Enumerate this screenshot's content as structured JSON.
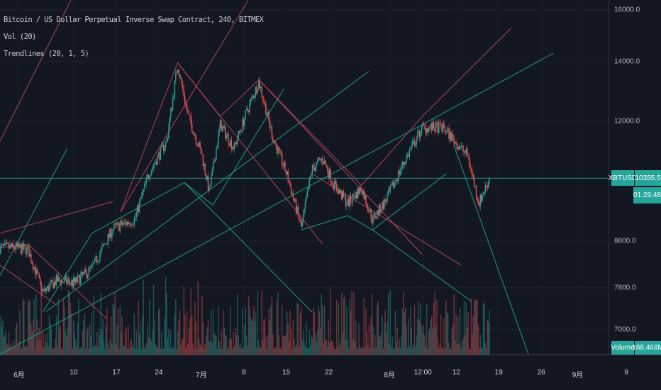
{
  "legend": {
    "title": "Bitcoin / US Dollar Perpetual Inverse Swap Contract, 240, BITMEX",
    "volume": "Vol (20)",
    "trendlines": "Trendlines (20, 1, 5)"
  },
  "price_axis": {
    "symbol_tag": "XBTUSD",
    "last_price": "10355.5",
    "countdown": "01:29:48",
    "volume_tag": "Volume",
    "volume_value": "168.468M"
  },
  "colors": {
    "up": "#26a69a",
    "down": "#ef5350",
    "trend_up": "#1e9e7e",
    "trend_down": "#b0455a",
    "background": "#131722"
  },
  "chart_data": {
    "type": "candlestick",
    "title": "Bitcoin / US Dollar Perpetual Inverse Swap Contract, 240, BITMEX",
    "y_scale": "log",
    "ylim": [
      6500,
      16500
    ],
    "y_ticks": [
      {
        "value": 16000,
        "label": "16000.0"
      },
      {
        "value": 14000,
        "label": "14000.0"
      },
      {
        "value": 12000,
        "label": "12000.0"
      },
      {
        "value": 8800,
        "label": "8800.0"
      },
      {
        "value": 7800,
        "label": "7800.0"
      },
      {
        "value": 7000,
        "label": "7000.0"
      }
    ],
    "x_unit": "days since Jun 1",
    "x_ticks": [
      {
        "day": 0,
        "label": "6月"
      },
      {
        "day": 9,
        "label": "10"
      },
      {
        "day": 16,
        "label": "17"
      },
      {
        "day": 23,
        "label": "24"
      },
      {
        "day": 30,
        "label": "7月"
      },
      {
        "day": 37,
        "label": "8"
      },
      {
        "day": 44,
        "label": "15"
      },
      {
        "day": 51,
        "label": "22"
      },
      {
        "day": 61,
        "label": "8月"
      },
      {
        "day": 66.5,
        "label": "12:00"
      },
      {
        "day": 72,
        "label": "12"
      },
      {
        "day": 79,
        "label": "19"
      },
      {
        "day": 86,
        "label": "26"
      },
      {
        "day": 92,
        "label": "9月"
      },
      {
        "day": 100,
        "label": "9"
      }
    ],
    "price_path": [
      [
        -3.2,
        8650
      ],
      [
        -0.8,
        8650
      ],
      [
        1.5,
        8600
      ],
      [
        3.9,
        7700
      ],
      [
        6.2,
        7950
      ],
      [
        9.1,
        7900
      ],
      [
        12,
        8200
      ],
      [
        15.5,
        9100
      ],
      [
        19,
        9300
      ],
      [
        21.4,
        10500
      ],
      [
        24.3,
        11400
      ],
      [
        26.1,
        13900
      ],
      [
        27.8,
        12200
      ],
      [
        30.1,
        11000
      ],
      [
        31.3,
        10000
      ],
      [
        33.1,
        11900
      ],
      [
        35.4,
        11200
      ],
      [
        37.7,
        12400
      ],
      [
        39.5,
        13300
      ],
      [
        41.8,
        11500
      ],
      [
        44.2,
        10400
      ],
      [
        46.5,
        9100
      ],
      [
        48.2,
        10600
      ],
      [
        50,
        10900
      ],
      [
        51.8,
        10200
      ],
      [
        54.1,
        9700
      ],
      [
        56.4,
        10100
      ],
      [
        58.2,
        9300
      ],
      [
        60.5,
        9800
      ],
      [
        63.4,
        10800
      ],
      [
        66.4,
        11800
      ],
      [
        69.9,
        11800
      ],
      [
        72.2,
        11300
      ],
      [
        73.9,
        10980
      ],
      [
        75.7,
        9700
      ],
      [
        77.5,
        10355
      ]
    ],
    "last_price": 10355.5,
    "trendlines": [
      {
        "color": "up",
        "points": [
          [
            -3.2,
            6560
          ],
          [
            88,
            14310
          ]
        ]
      },
      {
        "color": "up",
        "points": [
          [
            4.4,
            7330
          ],
          [
            57.6,
            13660
          ]
        ]
      },
      {
        "color": "up",
        "points": [
          [
            3.9,
            7330
          ],
          [
            12,
            8980
          ],
          [
            27.2,
            10240
          ]
        ]
      },
      {
        "color": "up",
        "points": [
          [
            27.2,
            10240
          ],
          [
            31.9,
            9660
          ],
          [
            43.6,
            13050
          ]
        ]
      },
      {
        "color": "up",
        "points": [
          [
            46.5,
            9060
          ],
          [
            54.1,
            9400
          ],
          [
            58.2,
            9060
          ],
          [
            70.4,
            10480
          ]
        ]
      },
      {
        "color": "up",
        "points": [
          [
            27.2,
            10240
          ],
          [
            48.2,
            7330
          ]
        ]
      },
      {
        "color": "up",
        "points": [
          [
            58.2,
            9060
          ],
          [
            74.5,
            7530
          ]
        ]
      },
      {
        "color": "up",
        "points": [
          [
            71.6,
            11280
          ],
          [
            83.9,
            6560
          ]
        ]
      },
      {
        "color": "up",
        "points": [
          [
            -3.2,
            8040
          ],
          [
            7.9,
            11180
          ]
        ]
      },
      {
        "color": "down",
        "points": [
          [
            -3.2,
            8980
          ],
          [
            15.5,
            9750
          ]
        ]
      },
      {
        "color": "down",
        "points": [
          [
            16.7,
            9490
          ],
          [
            26.1,
            13960
          ],
          [
            33.1,
            12150
          ],
          [
            39.5,
            13360
          ],
          [
            56.4,
            10170
          ]
        ]
      },
      {
        "color": "down",
        "points": [
          [
            56.4,
            10170
          ],
          [
            66.4,
            12150
          ],
          [
            81,
            15260
          ]
        ]
      },
      {
        "color": "down",
        "points": [
          [
            26.1,
            13960
          ],
          [
            50,
            8730
          ]
        ]
      },
      {
        "color": "down",
        "points": [
          [
            39.5,
            13360
          ],
          [
            66.4,
            8500
          ]
        ]
      },
      {
        "color": "down",
        "points": [
          [
            48.2,
            10480
          ],
          [
            72.8,
            8270
          ]
        ]
      },
      {
        "color": "down",
        "points": [
          [
            16.7,
            9490
          ],
          [
            37.7,
            16400
          ]
        ]
      },
      {
        "color": "down",
        "points": [
          [
            -3.2,
            11380
          ],
          [
            8.5,
            16400
          ]
        ]
      },
      {
        "color": "down",
        "points": [
          [
            -3.2,
            8650
          ],
          [
            1.5,
            8730
          ],
          [
            14.4,
            7200
          ]
        ]
      },
      {
        "color": "down",
        "points": [
          [
            -3.2,
            8270
          ],
          [
            6.2,
            7460
          ]
        ]
      }
    ]
  }
}
